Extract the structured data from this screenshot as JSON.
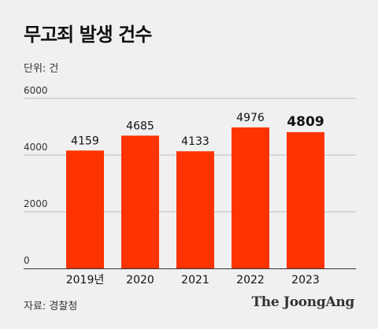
{
  "header": {
    "title": "무고죄 발생 건수",
    "unit": "단위: 건"
  },
  "footer": {
    "source": "자료: 경찰청",
    "logo": "The JoongAng"
  },
  "colors": {
    "bar": "#ff3300",
    "grid": "#bbbbbb",
    "baseline": "#333333",
    "background": "#f0f0f0"
  },
  "chart_data": {
    "type": "bar",
    "categories": [
      "2019년",
      "2020",
      "2021",
      "2022",
      "2023"
    ],
    "values": [
      4159,
      4685,
      4133,
      4976,
      4809
    ],
    "highlight_index": 4,
    "yticks": [
      0,
      2000,
      4000,
      6000
    ],
    "ylim": [
      0,
      6000
    ],
    "grid": true
  }
}
